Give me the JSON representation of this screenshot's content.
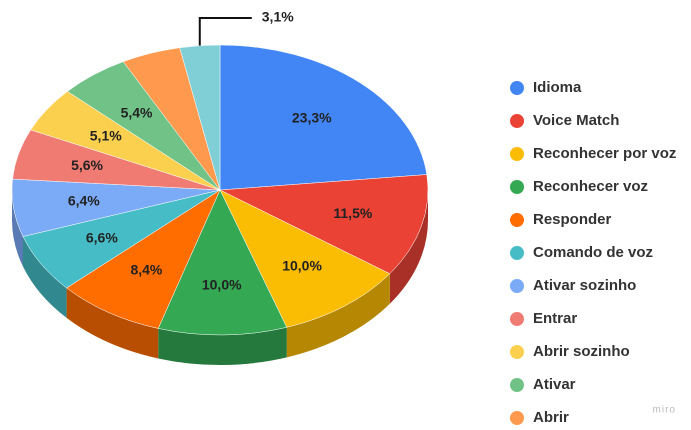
{
  "chart_data": {
    "type": "pie",
    "categories": [
      "Idioma",
      "Voice Match",
      "Reconhecer por voz",
      "Reconhecer voz",
      "Responder",
      "Comando de voz",
      "Ativar sozinho",
      "Entrar",
      "Abrir sozinho",
      "Ativar",
      "Abrir",
      null
    ],
    "values": [
      23.3,
      11.5,
      10.0,
      10.0,
      8.4,
      6.6,
      6.4,
      5.6,
      5.1,
      5.4,
      4.6,
      3.1
    ],
    "value_labels": [
      "23,3%",
      "11,5%",
      "10,0%",
      "10,0%",
      "8,4%",
      "6,6%",
      "6,4%",
      "5,6%",
      "5,1%",
      "5,4%",
      null,
      "3,1%"
    ],
    "colors": [
      "#4285f4",
      "#ea4335",
      "#fbbc04",
      "#34a853",
      "#ff6d01",
      "#46bdc6",
      "#7baaf7",
      "#f07b72",
      "#fcd04f",
      "#71c287",
      "#ff994d",
      "#80cfd6"
    ],
    "legend": "right",
    "three_d": true
  },
  "watermark": "miro"
}
